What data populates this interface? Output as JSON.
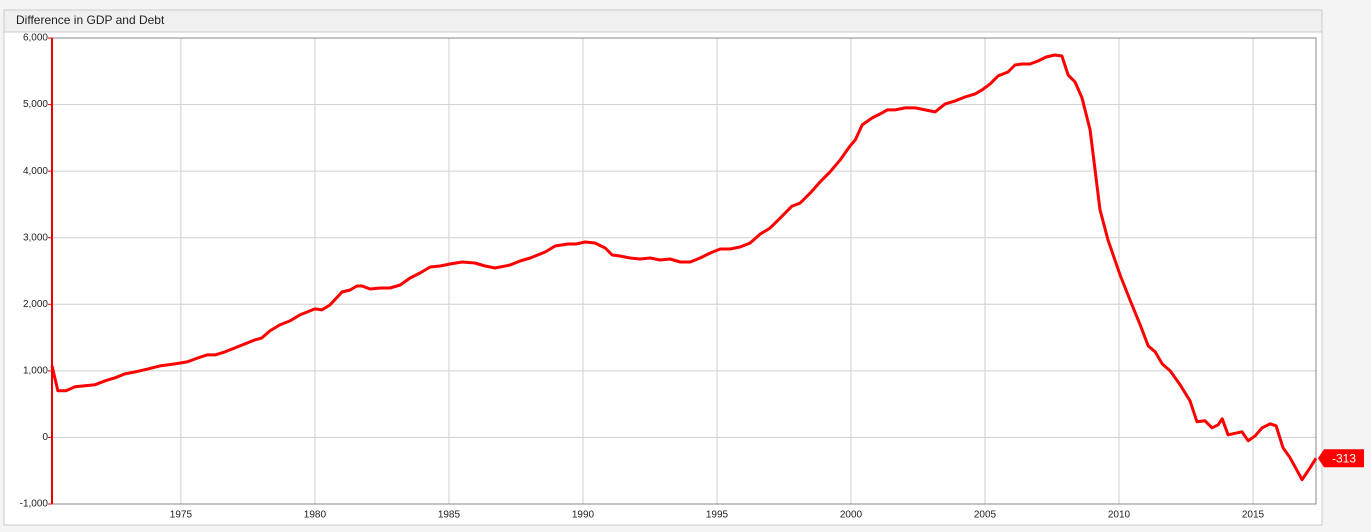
{
  "chart_data": {
    "type": "line",
    "title": "Difference in GDP and Debt",
    "x": [
      1970.19,
      1970.41,
      1970.71,
      1971.05,
      1971.42,
      1971.79,
      1972.17,
      1972.54,
      1972.91,
      1973.29,
      1973.77,
      1974.22,
      1974.78,
      1975.23,
      1975.64,
      1975.97,
      1976.27,
      1976.64,
      1977.2,
      1977.76,
      1978.02,
      1978.32,
      1978.69,
      1979.07,
      1979.44,
      1980.0,
      1980.26,
      1980.56,
      1981.01,
      1981.31,
      1981.57,
      1981.76,
      1982.06,
      1982.43,
      1982.8,
      1983.18,
      1983.55,
      1983.92,
      1984.3,
      1984.67,
      1985.04,
      1985.49,
      1985.97,
      1986.35,
      1986.72,
      1987.28,
      1987.65,
      1988.03,
      1988.59,
      1988.96,
      1989.44,
      1989.74,
      1990.08,
      1990.45,
      1990.83,
      1991.09,
      1991.38,
      1991.76,
      1992.13,
      1992.51,
      1992.88,
      1993.25,
      1993.63,
      1994.0,
      1994.37,
      1994.75,
      1995.12,
      1995.49,
      1995.86,
      1996.24,
      1996.61,
      1996.98,
      1997.36,
      1997.8,
      1998.1,
      1998.48,
      1998.85,
      1999.22,
      1999.6,
      1999.97,
      2000.16,
      2000.42,
      2000.79,
      2001.09,
      2001.35,
      2001.65,
      2002.02,
      2002.4,
      2002.77,
      2003.14,
      2003.51,
      2003.89,
      2004.26,
      2004.63,
      2004.89,
      2005.19,
      2005.49,
      2005.86,
      2006.12,
      2006.38,
      2006.68,
      2006.98,
      2007.28,
      2007.61,
      2007.87,
      2008.1,
      2008.36,
      2008.62,
      2008.92,
      2009.29,
      2009.59,
      2010.04,
      2010.41,
      2010.79,
      2011.09,
      2011.35,
      2011.61,
      2011.91,
      2012.28,
      2012.65,
      2012.91,
      2013.21,
      2013.47,
      2013.7,
      2013.85,
      2014.07,
      2014.59,
      2014.82,
      2015.08,
      2015.34,
      2015.64,
      2015.86,
      2016.12,
      2016.38,
      2016.83,
      2017.13,
      2017.35
    ],
    "values": [
      1075,
      700,
      700,
      760,
      775,
      790,
      850,
      895,
      955,
      985,
      1030,
      1075,
      1105,
      1135,
      1195,
      1240,
      1240,
      1285,
      1375,
      1465,
      1495,
      1600,
      1690,
      1750,
      1840,
      1930,
      1915,
      1990,
      2185,
      2215,
      2275,
      2275,
      2230,
      2245,
      2245,
      2290,
      2395,
      2470,
      2560,
      2575,
      2605,
      2635,
      2620,
      2575,
      2545,
      2590,
      2650,
      2695,
      2785,
      2875,
      2905,
      2905,
      2935,
      2920,
      2845,
      2740,
      2725,
      2695,
      2680,
      2695,
      2665,
      2680,
      2635,
      2635,
      2695,
      2770,
      2830,
      2830,
      2860,
      2920,
      3055,
      3145,
      3295,
      3475,
      3520,
      3670,
      3840,
      3990,
      4170,
      4380,
      4470,
      4695,
      4800,
      4860,
      4920,
      4920,
      4950,
      4950,
      4920,
      4890,
      5010,
      5055,
      5115,
      5160,
      5220,
      5310,
      5430,
      5490,
      5595,
      5610,
      5610,
      5655,
      5715,
      5745,
      5730,
      5445,
      5340,
      5100,
      4620,
      3420,
      2965,
      2440,
      2065,
      1690,
      1375,
      1285,
      1105,
      1000,
      790,
      550,
      235,
      250,
      145,
      190,
      280,
      40,
      85,
      -50,
      25,
      145,
      205,
      175,
      -155,
      -305,
      -635,
      -455,
      -313
    ],
    "color": "#ff0000",
    "xlim": [
      1970.19,
      2017.35
    ],
    "xticks": [
      1975,
      1980,
      1985,
      1990,
      1995,
      2000,
      2005,
      2010,
      2015
    ],
    "ylim": [
      -1000,
      6000
    ],
    "yticks": [
      {
        "value": -1000,
        "label": "-1,000"
      },
      0,
      {
        "value": 1000,
        "label": "1,000"
      },
      {
        "value": 2000,
        "label": "2,000"
      },
      {
        "value": 3000,
        "label": "3,000"
      },
      {
        "value": 4000,
        "label": "4,000"
      },
      {
        "value": 5000,
        "label": "5,000"
      },
      {
        "value": 6000,
        "label": "6,000"
      }
    ],
    "grid": true
  }
}
